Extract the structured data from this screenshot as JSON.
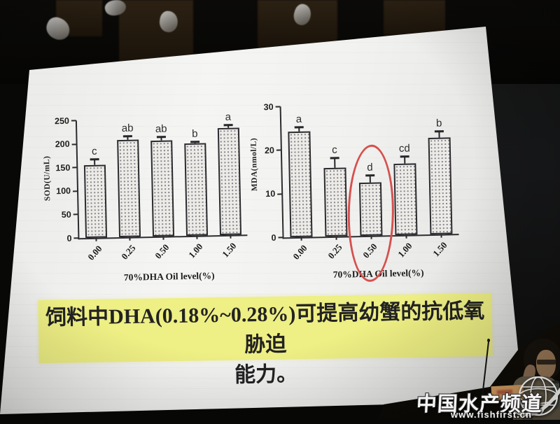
{
  "slide": {
    "caption": {
      "line1": "饲料中DHA(0.18%~0.28%)可提高幼蟹的抗低氧胁迫",
      "line2": "能力。",
      "highlight_color": "#eeef84"
    }
  },
  "photo": {
    "watermark": {
      "title": "中国水产频道",
      "url": "www.fishfirst.cn"
    }
  },
  "chart_data": [
    {
      "type": "bar",
      "ylabel": "SOD(U/mL)",
      "xlabel": "70%DHA Oil level(%)",
      "categories": [
        "0.00",
        "0.25",
        "0.50",
        "1.00",
        "1.50"
      ],
      "values": [
        155,
        207,
        204,
        196,
        228
      ],
      "errors": [
        12,
        7,
        7,
        4,
        5
      ],
      "sig_letters": [
        "c",
        "ab",
        "ab",
        "b",
        "a"
      ],
      "ylim": [
        0,
        250
      ],
      "yticks": [
        0,
        50,
        100,
        150,
        200,
        250
      ],
      "grid": false,
      "bar_style": "stipple"
    },
    {
      "type": "bar",
      "ylabel": "MDA(nmol/L)",
      "xlabel": "70%DHA Oil level(%)",
      "categories": [
        "0.00",
        "0.25",
        "0.50",
        "1.00",
        "1.50"
      ],
      "values": [
        24.2,
        15.7,
        12.2,
        16.4,
        22.2
      ],
      "errors": [
        1.0,
        2.2,
        1.6,
        1.6,
        1.4
      ],
      "sig_letters": [
        "a",
        "c",
        "d",
        "cd",
        "b"
      ],
      "ylim": [
        0,
        30
      ],
      "yticks": [
        0,
        10,
        20,
        30
      ],
      "grid": false,
      "bar_style": "stipple",
      "annotation": {
        "type": "ellipse",
        "target_category": "0.50",
        "color": "#d5504e"
      }
    }
  ]
}
